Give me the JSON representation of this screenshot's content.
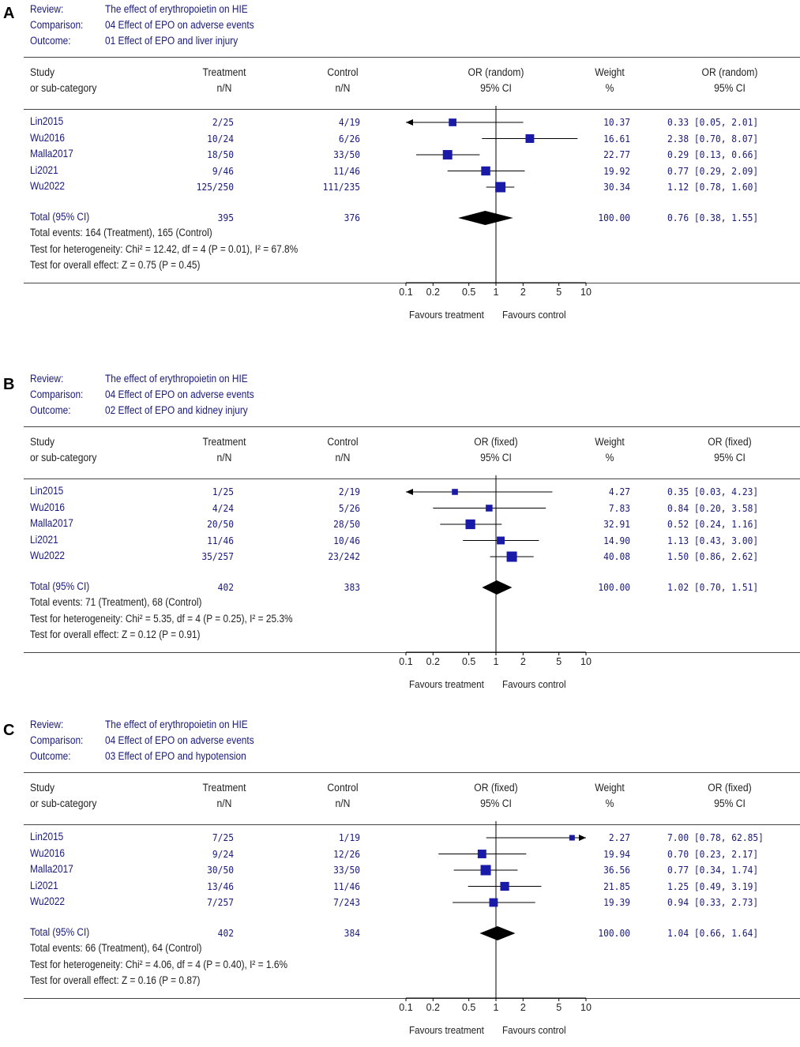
{
  "headers": {
    "study": "Study",
    "study_sub": "or sub-category",
    "treatment": "Treatment",
    "treatment_sub": "n/N",
    "control": "Control",
    "control_sub": "n/N",
    "ci_sub": "95% CI",
    "weight": "Weight",
    "weight_sub": "%"
  },
  "meta_labels": {
    "review": "Review:",
    "comparison": "Comparison:",
    "outcome": "Outcome:"
  },
  "axis": {
    "ticks": [
      "0.1",
      "0.2",
      "0.5",
      "1",
      "2",
      "5",
      "10"
    ],
    "favours_left": "Favours treatment",
    "favours_right": "Favours control"
  },
  "colors": {
    "marker": "#1a1aa8",
    "text": "#1a1a7a",
    "line": "#000000"
  },
  "chart_data": [
    {
      "type": "forest",
      "panel": "A",
      "review": "The effect of  erythropoietin on HIE",
      "comparison": "04 Effect of EPO on adverse events",
      "outcome": "01 Effect of EPO and liver injury",
      "model": "OR (random)",
      "xscale": "log",
      "xlim": [
        0.1,
        10
      ],
      "studies": [
        {
          "name": "Lin2015",
          "treatment": "2/25",
          "control": "4/19",
          "weight": "10.37",
          "ci_text": "0.33 [0.05, 2.01]",
          "or": 0.33,
          "lo": 0.05,
          "hi": 2.01
        },
        {
          "name": "Wu2016",
          "treatment": "10/24",
          "control": "6/26",
          "weight": "16.61",
          "ci_text": "2.38 [0.70, 8.07]",
          "or": 2.38,
          "lo": 0.7,
          "hi": 8.07
        },
        {
          "name": "Malla2017",
          "treatment": "18/50",
          "control": "33/50",
          "weight": "22.77",
          "ci_text": "0.29 [0.13, 0.66]",
          "or": 0.29,
          "lo": 0.13,
          "hi": 0.66
        },
        {
          "name": "Li2021",
          "treatment": "9/46",
          "control": "11/46",
          "weight": "19.92",
          "ci_text": "0.77 [0.29, 2.09]",
          "or": 0.77,
          "lo": 0.29,
          "hi": 2.09
        },
        {
          "name": "Wu2022",
          "treatment": "125/250",
          "control": "111/235",
          "weight": "30.34",
          "ci_text": "1.12 [0.78, 1.60]",
          "or": 1.12,
          "lo": 0.78,
          "hi": 1.6
        }
      ],
      "total": {
        "label": "Total (95% CI)",
        "treatment": "395",
        "control": "376",
        "weight": "100.00",
        "ci_text": "0.76 [0.38, 1.55]",
        "or": 0.76,
        "lo": 0.38,
        "hi": 1.55
      },
      "stats": [
        "Total events: 164 (Treatment), 165 (Control)",
        "Test for heterogeneity: Chi² = 12.42, df = 4 (P = 0.01), I² = 67.8%",
        "Test for overall effect: Z = 0.75 (P = 0.45)"
      ]
    },
    {
      "type": "forest",
      "panel": "B",
      "review": "The effect of  erythropoietin on HIE",
      "comparison": "04 Effect of EPO on adverse events",
      "outcome": "02 Effect of EPO and kidney injury",
      "model": "OR (fixed)",
      "xscale": "log",
      "xlim": [
        0.1,
        10
      ],
      "studies": [
        {
          "name": "Lin2015",
          "treatment": "1/25",
          "control": "2/19",
          "weight": "4.27",
          "ci_text": "0.35 [0.03, 4.23]",
          "or": 0.35,
          "lo": 0.03,
          "hi": 4.23
        },
        {
          "name": "Wu2016",
          "treatment": "4/24",
          "control": "5/26",
          "weight": "7.83",
          "ci_text": "0.84 [0.20, 3.58]",
          "or": 0.84,
          "lo": 0.2,
          "hi": 3.58
        },
        {
          "name": "Malla2017",
          "treatment": "20/50",
          "control": "28/50",
          "weight": "32.91",
          "ci_text": "0.52 [0.24, 1.16]",
          "or": 0.52,
          "lo": 0.24,
          "hi": 1.16
        },
        {
          "name": "Li2021",
          "treatment": "11/46",
          "control": "10/46",
          "weight": "14.90",
          "ci_text": "1.13 [0.43, 3.00]",
          "or": 1.13,
          "lo": 0.43,
          "hi": 3.0
        },
        {
          "name": "Wu2022",
          "treatment": "35/257",
          "control": "23/242",
          "weight": "40.08",
          "ci_text": "1.50 [0.86, 2.62]",
          "or": 1.5,
          "lo": 0.86,
          "hi": 2.62
        }
      ],
      "total": {
        "label": "Total (95% CI)",
        "treatment": "402",
        "control": "383",
        "weight": "100.00",
        "ci_text": "1.02 [0.70, 1.51]",
        "or": 1.02,
        "lo": 0.7,
        "hi": 1.51
      },
      "stats": [
        "Total events: 71 (Treatment), 68 (Control)",
        "Test for heterogeneity: Chi² = 5.35, df = 4 (P = 0.25), I² = 25.3%",
        "Test for overall effect: Z = 0.12 (P = 0.91)"
      ]
    },
    {
      "type": "forest",
      "panel": "C",
      "review": "The effect of  erythropoietin on HIE",
      "comparison": "04 Effect of EPO on adverse events",
      "outcome": "03 Effect of EPO and hypotension",
      "model": "OR (fixed)",
      "xscale": "log",
      "xlim": [
        0.1,
        10
      ],
      "studies": [
        {
          "name": "Lin2015",
          "treatment": "7/25",
          "control": "1/19",
          "weight": "2.27",
          "ci_text": "7.00 [0.78, 62.85]",
          "or": 7.0,
          "lo": 0.78,
          "hi": 62.85
        },
        {
          "name": "Wu2016",
          "treatment": "9/24",
          "control": "12/26",
          "weight": "19.94",
          "ci_text": "0.70 [0.23, 2.17]",
          "or": 0.7,
          "lo": 0.23,
          "hi": 2.17
        },
        {
          "name": "Malla2017",
          "treatment": "30/50",
          "control": "33/50",
          "weight": "36.56",
          "ci_text": "0.77 [0.34, 1.74]",
          "or": 0.77,
          "lo": 0.34,
          "hi": 1.74
        },
        {
          "name": "Li2021",
          "treatment": "13/46",
          "control": "11/46",
          "weight": "21.85",
          "ci_text": "1.25 [0.49, 3.19]",
          "or": 1.25,
          "lo": 0.49,
          "hi": 3.19
        },
        {
          "name": "Wu2022",
          "treatment": "7/257",
          "control": "7/243",
          "weight": "19.39",
          "ci_text": "0.94 [0.33, 2.73]",
          "or": 0.94,
          "lo": 0.33,
          "hi": 2.73
        }
      ],
      "total": {
        "label": "Total (95% CI)",
        "treatment": "402",
        "control": "384",
        "weight": "100.00",
        "ci_text": "1.04 [0.66, 1.64]",
        "or": 1.04,
        "lo": 0.66,
        "hi": 1.64
      },
      "stats": [
        "Total events: 66 (Treatment), 64 (Control)",
        "Test for heterogeneity: Chi² = 4.06, df = 4 (P = 0.40), I² = 1.6%",
        "Test for overall effect: Z = 0.16 (P = 0.87)"
      ]
    }
  ]
}
